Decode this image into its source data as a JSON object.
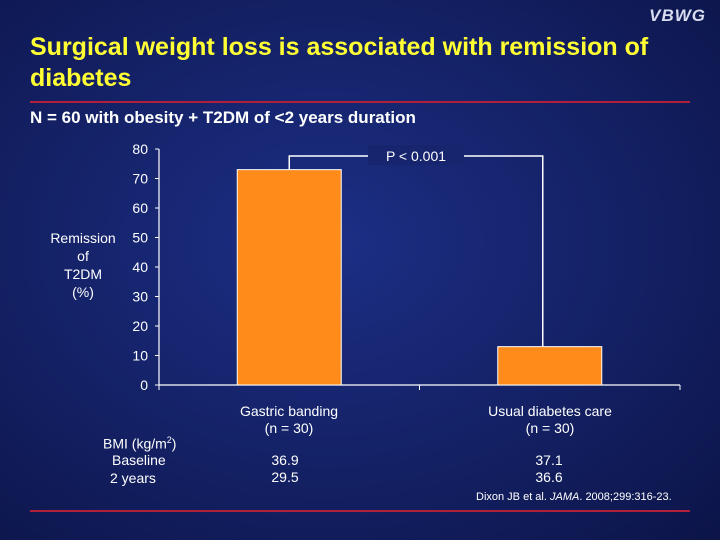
{
  "brand": "VBWG",
  "title": "Surgical weight loss is associated with remission of diabetes",
  "subtitle": "N = 60 with obesity + T2DM of <2 years duration",
  "chart_data": {
    "type": "bar",
    "categories": [
      "Gastric banding",
      "Usual diabetes care"
    ],
    "category_notes": [
      "(n = 30)",
      "(n = 30)"
    ],
    "values": [
      73,
      13
    ],
    "ylabel_lines": [
      "Remission",
      "of",
      "T2DM",
      "(%)"
    ],
    "ylim": [
      0,
      80
    ],
    "yticks": [
      0,
      10,
      20,
      30,
      40,
      50,
      60,
      70,
      80
    ],
    "annotation": "P < 0.001",
    "bar_color": "#ff8c1a",
    "grid": false
  },
  "bmi": {
    "header": "BMI (kg/m",
    "header_sup": "2",
    "header_end": ")",
    "rows": [
      "Baseline",
      "2 years"
    ],
    "gastric": [
      "36.9",
      "29.5"
    ],
    "usual": [
      "37.1",
      "36.6"
    ]
  },
  "citation": {
    "authors": "Dixon JB et al. ",
    "journal": "JAMA",
    "rest": ". 2008;299:316-23."
  }
}
